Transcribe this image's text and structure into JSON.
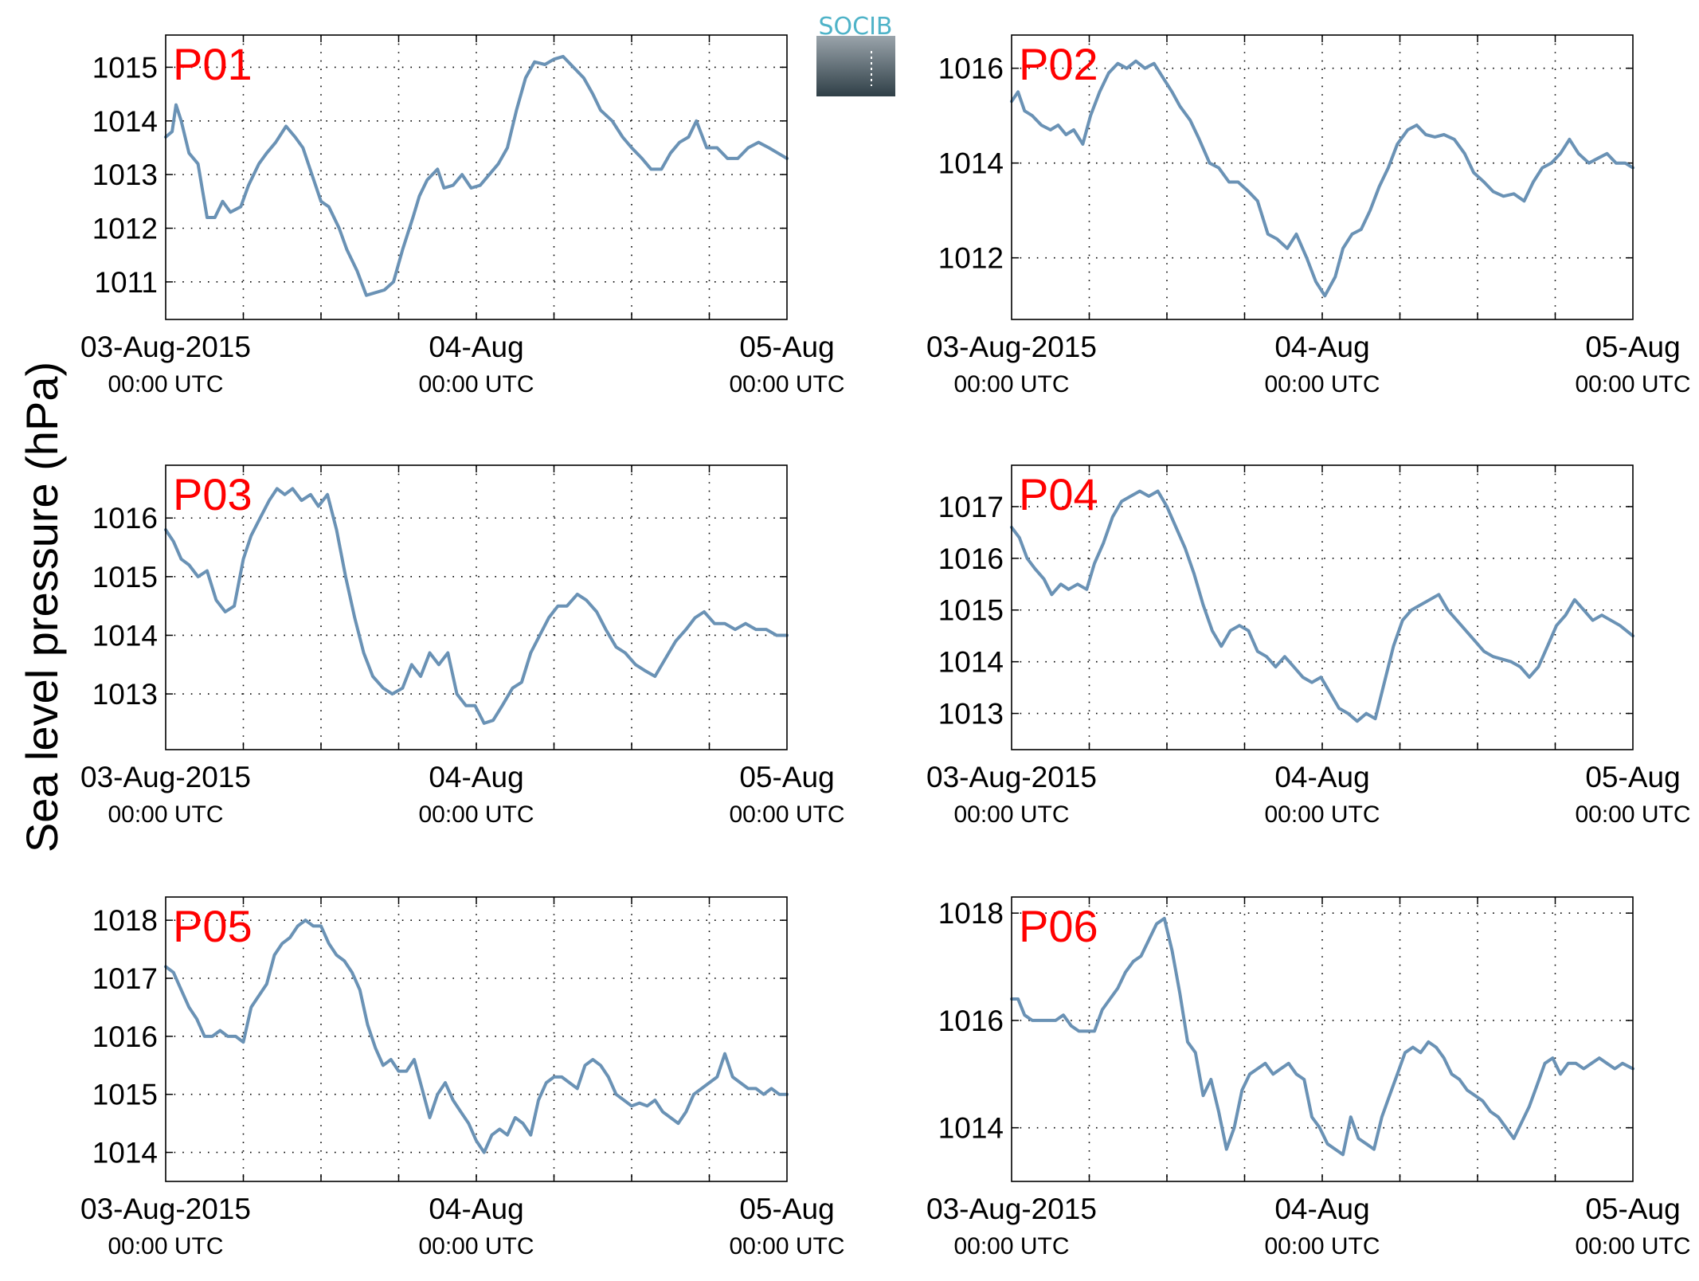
{
  "ylabel": "Sea level pressure (hPa)",
  "logo": {
    "text": "SOCIB",
    "text_color": "#4fb3c8",
    "gradient_top": "#9aa4ab",
    "gradient_bottom": "#2f3f47"
  },
  "colors": {
    "line": "#6a92b5",
    "label": "#ff0000",
    "axis": "#000000",
    "grid": "#000000"
  },
  "x_ticks": [
    {
      "main": "03-Aug-2015",
      "sub": "00:00 UTC",
      "hour": 0
    },
    {
      "main": "04-Aug",
      "sub": "00:00 UTC",
      "hour": 24
    },
    {
      "main": "05-Aug",
      "sub": "00:00 UTC",
      "hour": 48
    }
  ],
  "chart_data": [
    {
      "type": "line",
      "title": "P01",
      "xlim": [
        0,
        48
      ],
      "ylim": [
        1010.3,
        1015.6
      ],
      "yticks": [
        1011,
        1012,
        1013,
        1014,
        1015
      ],
      "grid": true,
      "x": [
        0,
        0.5,
        0.8,
        1.2,
        1.8,
        2.5,
        3.2,
        3.8,
        4.4,
        5.0,
        5.8,
        6.4,
        7.2,
        7.8,
        8.5,
        9.3,
        10.0,
        10.6,
        11.3,
        12.0,
        12.6,
        13.4,
        14.0,
        14.8,
        15.5,
        16.2,
        16.9,
        17.6,
        18.3,
        19.1,
        19.6,
        20.2,
        21.0,
        21.5,
        22.2,
        22.9,
        23.6,
        24.3,
        25.0,
        25.7,
        26.4,
        27.1,
        27.8,
        28.5,
        29.3,
        30.0,
        30.7,
        31.5,
        32.3,
        33.0,
        33.6,
        34.5,
        35.3,
        36.0,
        36.8,
        37.5,
        38.3,
        39.0,
        39.7,
        40.4,
        41.0,
        41.8,
        42.6,
        43.4,
        44.2,
        45.0,
        45.8,
        46.6,
        47.3,
        48.0
      ],
      "y": [
        1013.7,
        1013.8,
        1014.3,
        1014.0,
        1013.4,
        1013.2,
        1012.2,
        1012.2,
        1012.5,
        1012.3,
        1012.4,
        1012.8,
        1013.2,
        1013.4,
        1013.6,
        1013.9,
        1013.7,
        1013.5,
        1013.0,
        1012.5,
        1012.4,
        1012.0,
        1011.6,
        1011.2,
        1010.75,
        1010.8,
        1010.85,
        1011.0,
        1011.6,
        1012.2,
        1012.6,
        1012.9,
        1013.1,
        1012.75,
        1012.8,
        1013.0,
        1012.75,
        1012.8,
        1013.0,
        1013.2,
        1013.5,
        1014.2,
        1014.8,
        1015.1,
        1015.05,
        1015.15,
        1015.2,
        1015.0,
        1014.8,
        1014.5,
        1014.2,
        1014.0,
        1013.7,
        1013.5,
        1013.3,
        1013.1,
        1013.1,
        1013.4,
        1013.6,
        1013.7,
        1014.0,
        1013.5,
        1013.5,
        1013.3,
        1013.3,
        1013.5,
        1013.6,
        1013.5,
        1013.4,
        1013.3
      ]
    },
    {
      "type": "line",
      "title": "P02",
      "xlim": [
        0,
        48
      ],
      "ylim": [
        1010.7,
        1016.7
      ],
      "yticks": [
        1012,
        1014,
        1016
      ],
      "grid": true,
      "x": [
        0,
        0.5,
        1.0,
        1.6,
        2.3,
        3.0,
        3.6,
        4.2,
        4.8,
        5.5,
        6.1,
        6.8,
        7.5,
        8.2,
        8.9,
        9.6,
        10.3,
        11.0,
        11.7,
        12.4,
        13.0,
        13.8,
        14.5,
        15.3,
        16.0,
        16.8,
        17.5,
        18.3,
        19.0,
        19.8,
        20.5,
        21.3,
        22.0,
        22.8,
        23.5,
        24.2,
        25.0,
        25.6,
        26.3,
        27.0,
        27.7,
        28.4,
        29.1,
        29.8,
        30.6,
        31.3,
        32.0,
        32.7,
        33.4,
        34.2,
        35.0,
        35.7,
        36.5,
        37.2,
        38.0,
        38.8,
        39.6,
        40.3,
        41.0,
        41.7,
        42.4,
        43.1,
        43.8,
        44.6,
        45.3,
        46.0,
        46.7,
        47.4,
        48.0
      ],
      "y": [
        1015.3,
        1015.5,
        1015.1,
        1015.0,
        1014.8,
        1014.7,
        1014.8,
        1014.6,
        1014.7,
        1014.4,
        1015.0,
        1015.5,
        1015.9,
        1016.1,
        1016.0,
        1016.15,
        1016.0,
        1016.1,
        1015.8,
        1015.5,
        1015.2,
        1014.9,
        1014.5,
        1014.0,
        1013.9,
        1013.6,
        1013.6,
        1013.4,
        1013.2,
        1012.5,
        1012.4,
        1012.2,
        1012.5,
        1012.0,
        1011.5,
        1011.2,
        1011.6,
        1012.2,
        1012.5,
        1012.6,
        1013.0,
        1013.5,
        1013.9,
        1014.4,
        1014.7,
        1014.8,
        1014.6,
        1014.55,
        1014.6,
        1014.5,
        1014.2,
        1013.8,
        1013.6,
        1013.4,
        1013.3,
        1013.35,
        1013.2,
        1013.6,
        1013.9,
        1014.0,
        1014.2,
        1014.5,
        1014.2,
        1014.0,
        1014.1,
        1014.2,
        1014.0,
        1014.0,
        1013.9
      ]
    },
    {
      "type": "line",
      "title": "P03",
      "xlim": [
        0,
        48
      ],
      "ylim": [
        1012.05,
        1016.9
      ],
      "yticks": [
        1013,
        1014,
        1015,
        1016
      ],
      "grid": true,
      "x": [
        0,
        0.6,
        1.2,
        1.8,
        2.5,
        3.2,
        3.9,
        4.6,
        5.3,
        6.0,
        6.6,
        7.3,
        8.0,
        8.6,
        9.2,
        9.8,
        10.5,
        11.2,
        11.8,
        12.5,
        13.2,
        13.9,
        14.6,
        15.3,
        16.0,
        16.8,
        17.5,
        18.3,
        19.0,
        19.7,
        20.4,
        21.1,
        21.8,
        22.5,
        23.2,
        23.9,
        24.6,
        25.3,
        26.0,
        26.8,
        27.5,
        28.2,
        28.9,
        29.6,
        30.3,
        31.0,
        31.8,
        32.5,
        33.3,
        34.0,
        34.8,
        35.5,
        36.3,
        37.0,
        37.8,
        38.6,
        39.4,
        40.2,
        40.9,
        41.6,
        42.4,
        43.2,
        44.0,
        44.8,
        45.6,
        46.4,
        47.2,
        48.0
      ],
      "y": [
        1015.8,
        1015.6,
        1015.3,
        1015.2,
        1015.0,
        1015.1,
        1014.6,
        1014.4,
        1014.5,
        1015.3,
        1015.7,
        1016.0,
        1016.3,
        1016.5,
        1016.4,
        1016.5,
        1016.3,
        1016.4,
        1016.2,
        1016.4,
        1015.8,
        1015.0,
        1014.3,
        1013.7,
        1013.3,
        1013.1,
        1013.0,
        1013.1,
        1013.5,
        1013.3,
        1013.7,
        1013.5,
        1013.7,
        1013.0,
        1012.8,
        1012.8,
        1012.5,
        1012.55,
        1012.8,
        1013.1,
        1013.2,
        1013.7,
        1014.0,
        1014.3,
        1014.5,
        1014.5,
        1014.7,
        1014.6,
        1014.4,
        1014.1,
        1013.8,
        1013.7,
        1013.5,
        1013.4,
        1013.3,
        1013.6,
        1013.9,
        1014.1,
        1014.3,
        1014.4,
        1014.2,
        1014.2,
        1014.1,
        1014.2,
        1014.1,
        1014.1,
        1014.0,
        1014.0
      ]
    },
    {
      "type": "line",
      "title": "P04",
      "xlim": [
        0,
        48
      ],
      "ylim": [
        1012.3,
        1017.8
      ],
      "yticks": [
        1013,
        1014,
        1015,
        1016,
        1017
      ],
      "grid": true,
      "x": [
        0,
        0.6,
        1.2,
        1.8,
        2.5,
        3.1,
        3.8,
        4.4,
        5.1,
        5.8,
        6.4,
        7.1,
        7.8,
        8.5,
        9.2,
        9.9,
        10.6,
        11.3,
        12.0,
        12.7,
        13.4,
        14.1,
        14.8,
        15.5,
        16.2,
        16.9,
        17.6,
        18.3,
        19.0,
        19.7,
        20.4,
        21.1,
        21.8,
        22.5,
        23.2,
        23.9,
        24.6,
        25.3,
        26.0,
        26.7,
        27.4,
        28.1,
        28.8,
        29.5,
        30.2,
        30.9,
        31.6,
        32.3,
        33.0,
        33.7,
        34.4,
        35.1,
        35.8,
        36.5,
        37.2,
        37.9,
        38.6,
        39.3,
        40.0,
        40.7,
        41.4,
        42.1,
        42.8,
        43.5,
        44.2,
        44.9,
        45.6,
        46.3,
        47.0,
        48.0
      ],
      "y": [
        1016.6,
        1016.4,
        1016.0,
        1015.8,
        1015.6,
        1015.3,
        1015.5,
        1015.4,
        1015.5,
        1015.4,
        1015.9,
        1016.3,
        1016.8,
        1017.1,
        1017.2,
        1017.3,
        1017.2,
        1017.3,
        1017.0,
        1016.6,
        1016.2,
        1015.7,
        1015.1,
        1014.6,
        1014.3,
        1014.6,
        1014.7,
        1014.6,
        1014.2,
        1014.1,
        1013.9,
        1014.1,
        1013.9,
        1013.7,
        1013.6,
        1013.7,
        1013.4,
        1013.1,
        1013.0,
        1012.85,
        1013.0,
        1012.9,
        1013.6,
        1014.3,
        1014.8,
        1015.0,
        1015.1,
        1015.2,
        1015.3,
        1015.0,
        1014.8,
        1014.6,
        1014.4,
        1014.2,
        1014.1,
        1014.05,
        1014.0,
        1013.9,
        1013.7,
        1013.9,
        1014.3,
        1014.7,
        1014.9,
        1015.2,
        1015.0,
        1014.8,
        1014.9,
        1014.8,
        1014.7,
        1014.5
      ]
    },
    {
      "type": "line",
      "title": "P05",
      "xlim": [
        0,
        48
      ],
      "ylim": [
        1013.5,
        1018.4
      ],
      "yticks": [
        1014,
        1015,
        1016,
        1017,
        1018
      ],
      "grid": true,
      "x": [
        0,
        0.6,
        1.2,
        1.8,
        2.4,
        3.0,
        3.6,
        4.2,
        4.8,
        5.4,
        6.0,
        6.6,
        7.2,
        7.8,
        8.4,
        9.0,
        9.6,
        10.2,
        10.8,
        11.4,
        12.0,
        12.6,
        13.2,
        13.8,
        14.4,
        15.0,
        15.6,
        16.2,
        16.8,
        17.4,
        18.0,
        18.6,
        19.2,
        19.8,
        20.4,
        21.0,
        21.6,
        22.2,
        22.8,
        23.4,
        24.0,
        24.6,
        25.2,
        25.8,
        26.4,
        27.0,
        27.6,
        28.2,
        28.8,
        29.4,
        30.0,
        30.6,
        31.2,
        31.8,
        32.4,
        33.0,
        33.6,
        34.2,
        34.8,
        35.4,
        36.0,
        36.6,
        37.2,
        37.8,
        38.4,
        39.0,
        39.6,
        40.2,
        40.8,
        41.4,
        42.0,
        42.6,
        43.2,
        43.8,
        44.4,
        45.0,
        45.6,
        46.2,
        46.8,
        47.4,
        48.0
      ],
      "y": [
        1017.2,
        1017.1,
        1016.8,
        1016.5,
        1016.3,
        1016.0,
        1016.0,
        1016.1,
        1016.0,
        1016.0,
        1015.9,
        1016.5,
        1016.7,
        1016.9,
        1017.4,
        1017.6,
        1017.7,
        1017.9,
        1018.0,
        1017.9,
        1017.9,
        1017.6,
        1017.4,
        1017.3,
        1017.1,
        1016.8,
        1016.2,
        1015.8,
        1015.5,
        1015.6,
        1015.4,
        1015.4,
        1015.6,
        1015.1,
        1014.6,
        1015.0,
        1015.2,
        1014.9,
        1014.7,
        1014.5,
        1014.2,
        1014.0,
        1014.3,
        1014.4,
        1014.3,
        1014.6,
        1014.5,
        1014.3,
        1014.9,
        1015.2,
        1015.3,
        1015.3,
        1015.2,
        1015.1,
        1015.5,
        1015.6,
        1015.5,
        1015.3,
        1015.0,
        1014.9,
        1014.8,
        1014.85,
        1014.8,
        1014.9,
        1014.7,
        1014.6,
        1014.5,
        1014.7,
        1015.0,
        1015.1,
        1015.2,
        1015.3,
        1015.7,
        1015.3,
        1015.2,
        1015.1,
        1015.1,
        1015.0,
        1015.1,
        1015.0,
        1015.0
      ]
    },
    {
      "type": "line",
      "title": "P06",
      "xlim": [
        0,
        48
      ],
      "ylim": [
        1013.0,
        1018.3
      ],
      "yticks": [
        1014,
        1016,
        1018
      ],
      "grid": true,
      "x": [
        0,
        0.5,
        1.0,
        1.6,
        2.2,
        2.8,
        3.4,
        4.0,
        4.6,
        5.2,
        5.8,
        6.4,
        7.0,
        7.6,
        8.2,
        8.8,
        9.4,
        10.0,
        10.6,
        11.2,
        11.8,
        12.4,
        13.0,
        13.6,
        14.2,
        14.8,
        15.4,
        16.0,
        16.6,
        17.2,
        17.8,
        18.4,
        19.0,
        19.6,
        20.2,
        20.8,
        21.4,
        22.0,
        22.6,
        23.2,
        23.8,
        24.4,
        25.0,
        25.6,
        26.2,
        26.8,
        27.4,
        28.0,
        28.6,
        29.2,
        29.8,
        30.4,
        31.0,
        31.6,
        32.2,
        32.8,
        33.4,
        34.0,
        34.6,
        35.2,
        35.8,
        36.4,
        37.0,
        37.6,
        38.2,
        38.8,
        39.4,
        40.0,
        40.6,
        41.2,
        41.8,
        42.4,
        43.0,
        43.6,
        44.2,
        44.8,
        45.4,
        46.0,
        46.6,
        47.2,
        48.0
      ],
      "y": [
        1016.4,
        1016.4,
        1016.1,
        1016.0,
        1016.0,
        1016.0,
        1016.0,
        1016.1,
        1015.9,
        1015.8,
        1015.8,
        1015.8,
        1016.2,
        1016.4,
        1016.6,
        1016.9,
        1017.1,
        1017.2,
        1017.5,
        1017.8,
        1017.9,
        1017.3,
        1016.5,
        1015.6,
        1015.4,
        1014.6,
        1014.9,
        1014.3,
        1013.6,
        1014.0,
        1014.7,
        1015.0,
        1015.1,
        1015.2,
        1015.0,
        1015.1,
        1015.2,
        1015.0,
        1014.9,
        1014.2,
        1014.0,
        1013.7,
        1013.6,
        1013.5,
        1014.2,
        1013.8,
        1013.7,
        1013.6,
        1014.2,
        1014.6,
        1015.0,
        1015.4,
        1015.5,
        1015.4,
        1015.6,
        1015.5,
        1015.3,
        1015.0,
        1014.9,
        1014.7,
        1014.6,
        1014.5,
        1014.3,
        1014.2,
        1014.0,
        1013.8,
        1014.1,
        1014.4,
        1014.8,
        1015.2,
        1015.3,
        1015.0,
        1015.2,
        1015.2,
        1015.1,
        1015.2,
        1015.3,
        1015.2,
        1015.1,
        1015.2,
        1015.1
      ]
    }
  ]
}
